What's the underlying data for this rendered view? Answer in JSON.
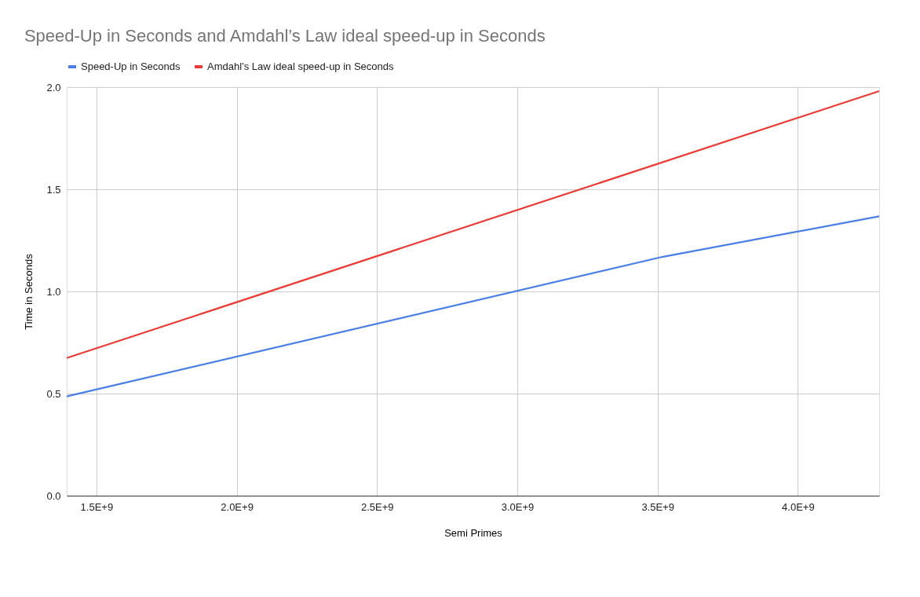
{
  "chart_data": {
    "type": "line",
    "title": "Speed-Up in Seconds and Amdahl’s Law ideal speed-up in Seconds",
    "xlabel": "Semi Primes",
    "ylabel": "Time in Seconds",
    "series": [
      {
        "name": "Speed-Up in Seconds",
        "color": "#4a7ee8",
        "x": [
          1394000000,
          3520000000,
          4290000000
        ],
        "values": [
          0.486,
          1.17,
          1.368
        ]
      },
      {
        "name": "Amdahl’s Law ideal speed-up in Seconds",
        "color": "#ea3b35",
        "x": [
          1394000000,
          4290000000
        ],
        "values": [
          0.674,
          1.981
        ]
      }
    ],
    "xlim": [
      1394000000,
      4290000000
    ],
    "xticks": [
      {
        "value": 1500000000,
        "label": "1.5E+9"
      },
      {
        "value": 2000000000,
        "label": "2.0E+9"
      },
      {
        "value": 2500000000,
        "label": "2.5E+9"
      },
      {
        "value": 3000000000,
        "label": "3.0E+9"
      },
      {
        "value": 3500000000,
        "label": "3.5E+9"
      },
      {
        "value": 4000000000,
        "label": "4.0E+9"
      }
    ],
    "ylim": [
      0,
      2
    ],
    "yticks": [
      {
        "value": 0,
        "label": "0.0"
      },
      {
        "value": 0.5,
        "label": "0.5"
      },
      {
        "value": 1,
        "label": "1.0"
      },
      {
        "value": 1.5,
        "label": "1.5"
      },
      {
        "value": 2,
        "label": "2.0"
      }
    ],
    "grid": true,
    "legend": "top",
    "marker": "none",
    "line_style": "solid"
  }
}
